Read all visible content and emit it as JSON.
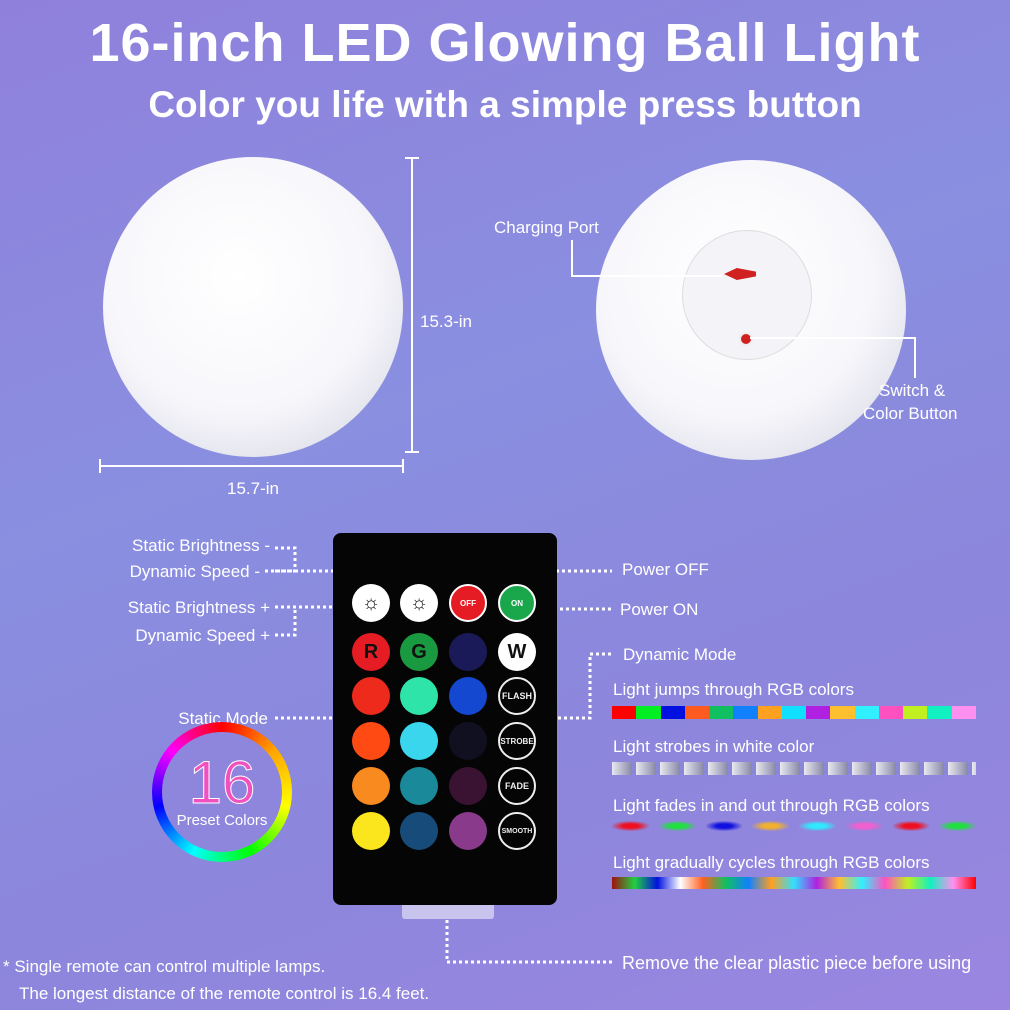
{
  "header": {
    "title": "16-inch LED Glowing Ball Light",
    "subtitle": "Color you life with a simple press button"
  },
  "dimensions": {
    "height": "15.3-in",
    "width": "15.7-in"
  },
  "ball_labels": {
    "charging_port": "Charging Port",
    "switch_line1": "Switch &",
    "switch_line2": "Color Button"
  },
  "remote_labels": {
    "static_brightness_minus": "Static Brightness -",
    "dynamic_speed_minus": "Dynamic Speed -",
    "static_brightness_plus": "Static Brightness +",
    "dynamic_speed_plus": "Dynamic Speed +",
    "static_mode": "Static Mode",
    "power_off": "Power OFF",
    "power_on": "Power ON",
    "dynamic_mode": "Dynamic Mode"
  },
  "remote_buttons": {
    "off": "OFF",
    "on": "ON",
    "r": "R",
    "g": "G",
    "w": "W",
    "flash": "FLASH",
    "strobe": "STROBE",
    "fade": "FADE",
    "smooth": "SMOOTH",
    "colors": [
      "#ee1c1c",
      "#ff3a1c",
      "#ff5a14",
      "#f98a20",
      "#fbe61e",
      "#1ca64a",
      "#2ee4a8",
      "#3ad6ee",
      "#1a8a9a",
      "#174c7a",
      "#1a1a60",
      "#1448d0",
      "#101020",
      "#3a1232",
      "#8a3a8a"
    ]
  },
  "preset": {
    "number": "16",
    "label": "Preset Colors"
  },
  "modes": [
    {
      "text": "Light jumps through RGB colors",
      "colors": [
        "#ff0000",
        "#00ee22",
        "#0010e0",
        "#ff5a20",
        "#10c060",
        "#1080ff",
        "#ffa020",
        "#10e0ff",
        "#b020e0",
        "#ffc030",
        "#30f0ff",
        "#ff50c0",
        "#c0f020",
        "#10f0c0",
        "#ff90f0"
      ]
    },
    {
      "text": "Light strobes in white color"
    },
    {
      "text": "Light fades in and out through RGB colors",
      "colors": [
        "#ee1020",
        "#20e040",
        "#1010e0",
        "#f0b030",
        "#30e8ff",
        "#f060d0",
        "#ee1020",
        "#20e040"
      ]
    },
    {
      "text": "Light  gradually cycles through RGB colors"
    }
  ],
  "notes": {
    "remove": "Remove the clear plastic piece before using",
    "footnote1": "* Single remote can control multiple lamps.",
    "footnote2": "The longest distance of the remote control is 16.4 feet."
  },
  "colors": {
    "accent_red": "#e51c24",
    "accent_green": "#1aa64a"
  }
}
